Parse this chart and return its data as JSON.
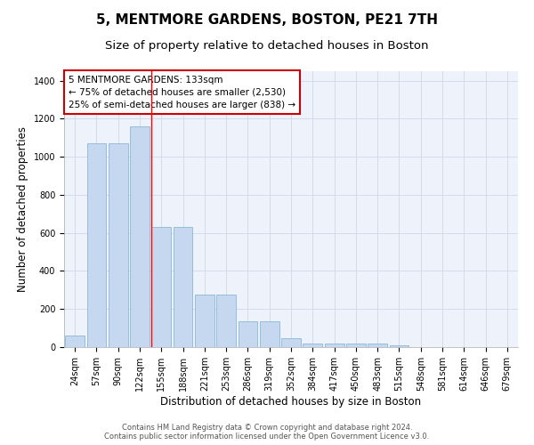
{
  "title": "5, MENTMORE GARDENS, BOSTON, PE21 7TH",
  "subtitle": "Size of property relative to detached houses in Boston",
  "xlabel": "Distribution of detached houses by size in Boston",
  "ylabel": "Number of detached properties",
  "footer_line1": "Contains HM Land Registry data © Crown copyright and database right 2024.",
  "footer_line2": "Contains public sector information licensed under the Open Government Licence v3.0.",
  "categories": [
    "24sqm",
    "57sqm",
    "90sqm",
    "122sqm",
    "155sqm",
    "188sqm",
    "221sqm",
    "253sqm",
    "286sqm",
    "319sqm",
    "352sqm",
    "384sqm",
    "417sqm",
    "450sqm",
    "483sqm",
    "515sqm",
    "548sqm",
    "581sqm",
    "614sqm",
    "646sqm",
    "679sqm"
  ],
  "bar_values": [
    60,
    1070,
    1070,
    1160,
    630,
    630,
    275,
    275,
    135,
    135,
    45,
    20,
    20,
    20,
    20,
    10,
    0,
    0,
    0,
    0,
    0
  ],
  "bar_color": "#c5d8f0",
  "bar_edge_color": "#7aafd4",
  "background_color": "#eef2fb",
  "grid_color": "#d0d8e8",
  "red_line_index": 3.55,
  "ylim": [
    0,
    1450
  ],
  "yticks": [
    0,
    200,
    400,
    600,
    800,
    1000,
    1200,
    1400
  ],
  "annotation_text": "5 MENTMORE GARDENS: 133sqm\n← 75% of detached houses are smaller (2,530)\n25% of semi-detached houses are larger (838) →",
  "annotation_box_color": "#ffffff",
  "annotation_box_edge": "#cc0000",
  "title_fontsize": 11,
  "subtitle_fontsize": 9.5,
  "tick_fontsize": 7,
  "ylabel_fontsize": 8.5,
  "xlabel_fontsize": 8.5,
  "annotation_fontsize": 7.5,
  "footer_fontsize": 6
}
